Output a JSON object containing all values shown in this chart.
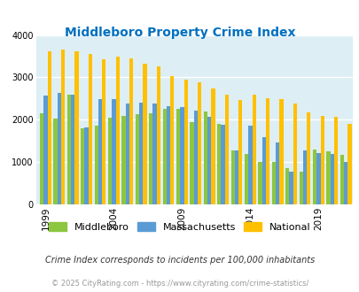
{
  "title": "Middleboro Property Crime Index",
  "years": [
    1999,
    2000,
    2001,
    2002,
    2003,
    2004,
    2005,
    2006,
    2007,
    2008,
    2009,
    2010,
    2011,
    2012,
    2013,
    2014,
    2015,
    2016,
    2017,
    2018,
    2019,
    2020,
    2021
  ],
  "middleboro": [
    2150,
    2030,
    2600,
    1800,
    1850,
    2050,
    2100,
    2130,
    2150,
    2250,
    2250,
    1950,
    2200,
    1900,
    1270,
    1200,
    1000,
    1000,
    850,
    775,
    1300,
    1250,
    1180
  ],
  "massachusetts": [
    2570,
    2640,
    2600,
    1820,
    2490,
    2490,
    2380,
    2400,
    2390,
    2330,
    2300,
    2220,
    2060,
    1880,
    1280,
    1870,
    1580,
    1460,
    780,
    1270,
    1210,
    1200,
    1000
  ],
  "national": [
    3620,
    3660,
    3620,
    3550,
    3430,
    3500,
    3440,
    3330,
    3260,
    3020,
    2940,
    2880,
    2740,
    2590,
    2470,
    2600,
    2500,
    2480,
    2380,
    2180,
    2100,
    2070,
    1900
  ],
  "bar_colors": {
    "middleboro": "#8dc63f",
    "massachusetts": "#5b9bd5",
    "national": "#ffc000"
  },
  "background_color": "#ddeef5",
  "ylim": [
    0,
    4000
  ],
  "yticks": [
    0,
    1000,
    2000,
    3000,
    4000
  ],
  "xlabel_ticks": [
    1999,
    2004,
    2009,
    2014,
    2019
  ],
  "title_color": "#0070c0",
  "title_fontsize": 10,
  "subtitle": "Crime Index corresponds to incidents per 100,000 inhabitants",
  "footer": "© 2025 CityRating.com - https://www.cityrating.com/crime-statistics/",
  "legend_labels": [
    "Middleboro",
    "Massachusetts",
    "National"
  ],
  "bar_width": 0.28,
  "grid_color": "#ffffff",
  "axis_bg": "#ddeef5"
}
